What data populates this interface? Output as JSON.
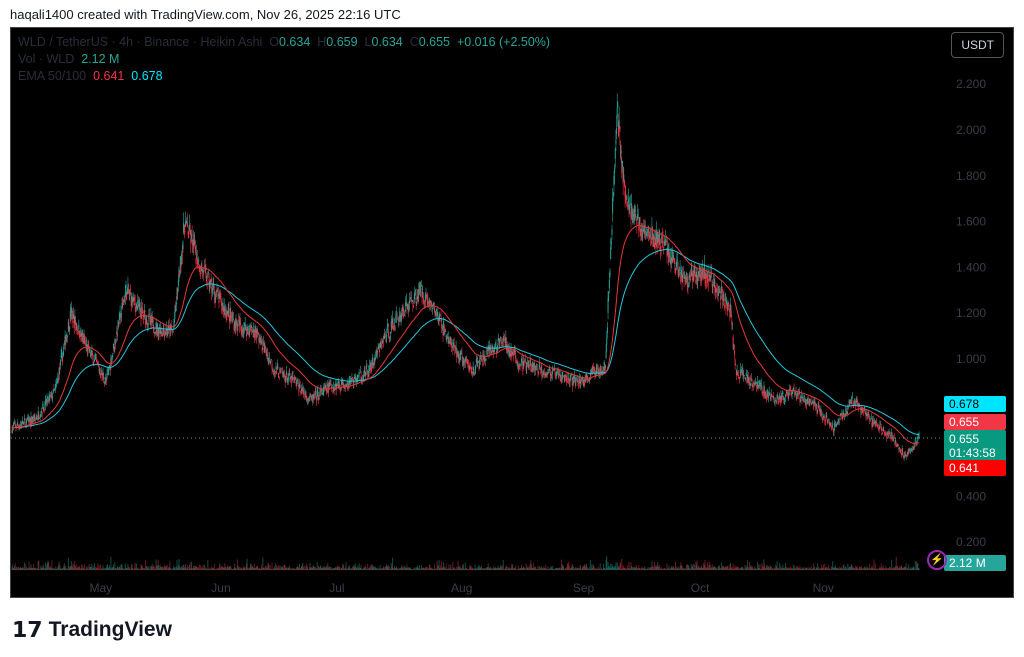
{
  "credit": "haqali1400 created with TradingView.com, Nov 26, 2025 22:16 UTC",
  "legend": {
    "symbol": "WLD / TetherUS · 4h · Binance · Heikin Ashi",
    "o_label": "O",
    "o": "0.634",
    "h_label": "H",
    "h": "0.659",
    "l_label": "L",
    "l": "0.634",
    "c_label": "C",
    "c": "0.655",
    "change": "+0.016 (+2.50%)",
    "vol_label": "Vol · WLD",
    "vol": "2.12 M",
    "ema_label": "EMA 50/100",
    "ema50": "0.641",
    "ema100": "0.678"
  },
  "currency_button": "USDT",
  "tags": {
    "ema100": "0.678",
    "prev": "0.655",
    "price": "0.655",
    "countdown": "01:43:58",
    "ema50": "0.641",
    "volume": "2.12 M"
  },
  "colors": {
    "up": "#26a69a",
    "down": "#f23645",
    "ema50": "#e53935",
    "ema100": "#26c6da",
    "ema100_tag": "#00e5ff"
  },
  "icons": {
    "alert": "lightning-icon"
  },
  "logo": "TradingView",
  "chart_data": {
    "type": "candlestick",
    "style": "Heikin Ashi",
    "yticks": [
      "0.200",
      "0.400",
      "1.000",
      "1.200",
      "1.400",
      "1.600",
      "1.800",
      "2.000",
      "2.200"
    ],
    "ylim": [
      0,
      2.4
    ],
    "xticks": [
      "May",
      "Jun",
      "Jul",
      "Aug",
      "Sep",
      "Oct",
      "Nov"
    ],
    "price_path": [
      [
        "2025-04-09",
        0.7
      ],
      [
        "2025-04-15",
        0.74
      ],
      [
        "2025-04-20",
        0.86
      ],
      [
        "2025-04-24",
        1.2
      ],
      [
        "2025-04-28",
        1.05
      ],
      [
        "2025-05-03",
        0.9
      ],
      [
        "2025-05-08",
        1.3
      ],
      [
        "2025-05-12",
        1.2
      ],
      [
        "2025-05-16",
        1.13
      ],
      [
        "2025-05-20",
        1.12
      ],
      [
        "2025-05-23",
        1.6
      ],
      [
        "2025-05-27",
        1.4
      ],
      [
        "2025-06-01",
        1.25
      ],
      [
        "2025-06-05",
        1.15
      ],
      [
        "2025-06-10",
        1.12
      ],
      [
        "2025-06-15",
        0.95
      ],
      [
        "2025-06-20",
        0.9
      ],
      [
        "2025-06-24",
        0.82
      ],
      [
        "2025-06-29",
        0.88
      ],
      [
        "2025-07-04",
        0.9
      ],
      [
        "2025-07-09",
        0.95
      ],
      [
        "2025-07-13",
        1.1
      ],
      [
        "2025-07-17",
        1.2
      ],
      [
        "2025-07-22",
        1.3
      ],
      [
        "2025-07-26",
        1.2
      ],
      [
        "2025-07-30",
        1.05
      ],
      [
        "2025-08-04",
        0.95
      ],
      [
        "2025-08-08",
        1.02
      ],
      [
        "2025-08-12",
        1.08
      ],
      [
        "2025-08-16",
        0.98
      ],
      [
        "2025-08-22",
        0.95
      ],
      [
        "2025-08-27",
        0.92
      ],
      [
        "2025-09-01",
        0.9
      ],
      [
        "2025-09-07",
        0.98
      ],
      [
        "2025-09-10",
        2.1
      ],
      [
        "2025-09-12",
        1.7
      ],
      [
        "2025-09-17",
        1.55
      ],
      [
        "2025-09-22",
        1.5
      ],
      [
        "2025-09-27",
        1.35
      ],
      [
        "2025-10-02",
        1.38
      ],
      [
        "2025-10-06",
        1.3
      ],
      [
        "2025-10-09",
        1.2
      ],
      [
        "2025-10-10",
        0.95
      ],
      [
        "2025-10-15",
        0.9
      ],
      [
        "2025-10-20",
        0.82
      ],
      [
        "2025-10-25",
        0.85
      ],
      [
        "2025-10-30",
        0.8
      ],
      [
        "2025-11-04",
        0.7
      ],
      [
        "2025-11-09",
        0.82
      ],
      [
        "2025-11-14",
        0.72
      ],
      [
        "2025-11-19",
        0.66
      ],
      [
        "2025-11-22",
        0.58
      ],
      [
        "2025-11-26",
        0.655
      ]
    ],
    "series": [
      {
        "name": "EMA 50",
        "color": "#e53935"
      },
      {
        "name": "EMA 100",
        "color": "#26c6da"
      }
    ],
    "last_price": 0.655,
    "grid": false
  }
}
